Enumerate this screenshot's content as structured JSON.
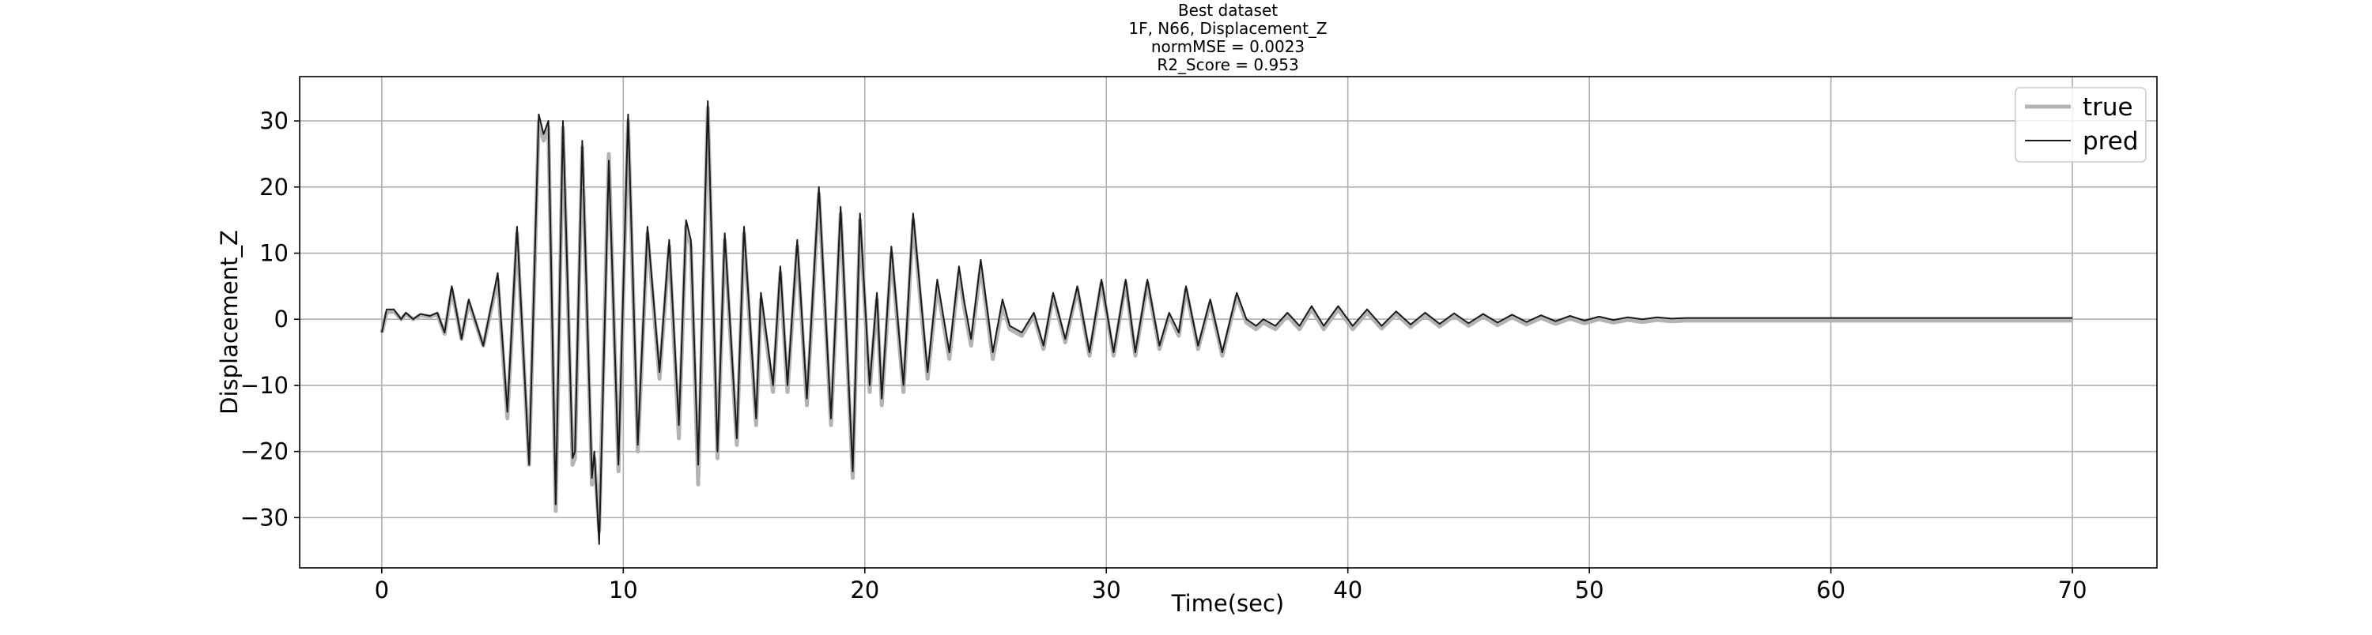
{
  "chart_data": {
    "type": "line",
    "title": [
      "Best dataset",
      "1F, N66, Displacement_Z",
      "normMSE = 0.0023",
      "R2_Score = 0.953"
    ],
    "x_label": "Time(sec)",
    "y_label": "Displacement_Z",
    "x": [
      0,
      0.2,
      0.5,
      0.8,
      1.0,
      1.3,
      1.6,
      2.0,
      2.3,
      2.6,
      2.9,
      3.3,
      3.6,
      4.2,
      4.8,
      5.2,
      5.6,
      6.1,
      6.5,
      6.7,
      6.9,
      7.2,
      7.5,
      7.9,
      8.0,
      8.3,
      8.7,
      8.8,
      9.0,
      9.4,
      9.8,
      10.2,
      10.6,
      11.0,
      11.5,
      11.9,
      12.3,
      12.6,
      12.8,
      13.1,
      13.5,
      13.9,
      14.2,
      14.7,
      15.0,
      15.5,
      15.7,
      16.2,
      16.5,
      16.8,
      17.2,
      17.6,
      18.1,
      18.6,
      19.0,
      19.5,
      19.8,
      20.2,
      20.5,
      20.7,
      21.1,
      21.6,
      22.0,
      22.6,
      23.0,
      23.5,
      23.9,
      24.1,
      24.4,
      24.8,
      25.3,
      25.7,
      26.0,
      26.5,
      27.0,
      27.4,
      27.8,
      28.3,
      28.8,
      29.3,
      29.8,
      30.3,
      30.8,
      31.2,
      31.7,
      32.2,
      32.6,
      33.0,
      33.3,
      33.8,
      34.3,
      34.8,
      35.4,
      35.8,
      36.2,
      36.5,
      37.0,
      37.5,
      38.0,
      38.5,
      39.0,
      39.6,
      40.2,
      40.8,
      41.4,
      42.0,
      42.6,
      43.2,
      43.8,
      44.4,
      45.0,
      45.6,
      46.2,
      46.8,
      47.4,
      48.0,
      48.6,
      49.2,
      49.8,
      50.4,
      51.0,
      51.6,
      52.2,
      52.8,
      53.4,
      54.0,
      55.0,
      60.0,
      65.0,
      70.0
    ],
    "series": [
      {
        "name": "true",
        "color": "#b3b3b3",
        "values": [
          -2,
          1,
          1.2,
          0,
          0.8,
          0,
          0.6,
          0.4,
          0.8,
          -2.2,
          4.5,
          -3,
          2.5,
          -4,
          6,
          -15,
          13,
          -22,
          30,
          27,
          29,
          -29,
          29,
          -22,
          -21,
          26,
          -25,
          -21,
          -32,
          25,
          -23,
          30,
          -20,
          13,
          -9,
          11,
          -18,
          14,
          11,
          -25,
          32,
          -21,
          12,
          -19,
          13,
          -16,
          3,
          -11,
          7,
          -11,
          11,
          -13,
          19,
          -16,
          16,
          -24,
          15,
          -11,
          3,
          -13,
          10,
          -11,
          15,
          -9,
          5,
          -6,
          7,
          2,
          -4,
          8,
          -6,
          2,
          -1.5,
          -2.5,
          0.5,
          -4.5,
          3.5,
          -3.5,
          4.5,
          -5.5,
          5.5,
          -5.5,
          5.5,
          -5.5,
          5.5,
          -4.5,
          0.5,
          -2.5,
          4.5,
          -4.5,
          2.5,
          -5.5,
          3.5,
          -0.5,
          -1.5,
          -0.5,
          -1.5,
          0.5,
          -1.5,
          1.5,
          -1.5,
          1.5,
          -1.5,
          1,
          -1.4,
          0.8,
          -1.2,
          0.6,
          -1.1,
          0.5,
          -1,
          0.4,
          -0.9,
          0.3,
          -0.8,
          0.2,
          -0.7,
          0.1,
          -0.6,
          0,
          -0.5,
          -0.1,
          -0.4,
          -0.1,
          -0.3,
          -0.2,
          -0.2,
          -0.2,
          -0.2,
          -0.2
        ]
      },
      {
        "name": "pred",
        "color": "#1a1a1a",
        "values": [
          -2,
          1.5,
          1.5,
          0,
          1,
          0,
          0.8,
          0.5,
          1,
          -2,
          5,
          -3,
          3,
          -4,
          7,
          -14,
          14,
          -22,
          31,
          28,
          30,
          -28,
          30,
          -21,
          -20,
          27,
          -24,
          -20,
          -34,
          24,
          -22,
          31,
          -19,
          14,
          -8,
          12,
          -16,
          15,
          12,
          -22,
          33,
          -20,
          13,
          -18,
          14,
          -15,
          4,
          -10,
          8,
          -10,
          12,
          -12,
          20,
          -15,
          17,
          -23,
          16,
          -10,
          4,
          -12,
          11,
          -10,
          16,
          -8,
          6,
          -5,
          8,
          3,
          -3,
          9,
          -5,
          3,
          -1,
          -2,
          1,
          -4,
          4,
          -3,
          5,
          -5,
          6,
          -5,
          6,
          -5,
          6,
          -4,
          1,
          -2,
          5,
          -4,
          3,
          -5,
          4,
          0,
          -1,
          0,
          -1,
          1,
          -1,
          2,
          -1,
          2,
          -1,
          1.5,
          -1,
          1.2,
          -0.8,
          1,
          -0.7,
          0.9,
          -0.6,
          0.8,
          -0.5,
          0.7,
          -0.4,
          0.6,
          -0.3,
          0.5,
          -0.2,
          0.4,
          -0.1,
          0.3,
          0,
          0.3,
          0.1,
          0.2,
          0.2,
          0.2,
          0.2,
          0.2
        ]
      }
    ],
    "xlim": [
      -3.4,
      73.5
    ],
    "ylim": [
      -37.6,
      36.7
    ],
    "xticks": [
      0,
      10,
      20,
      30,
      40,
      50,
      60,
      70
    ],
    "yticks": [
      {
        "value": -30,
        "label": "−30"
      },
      {
        "value": -20,
        "label": "−20"
      },
      {
        "value": -10,
        "label": "−10"
      },
      0,
      10,
      20,
      30
    ],
    "grid": true,
    "legend": "upper right"
  }
}
